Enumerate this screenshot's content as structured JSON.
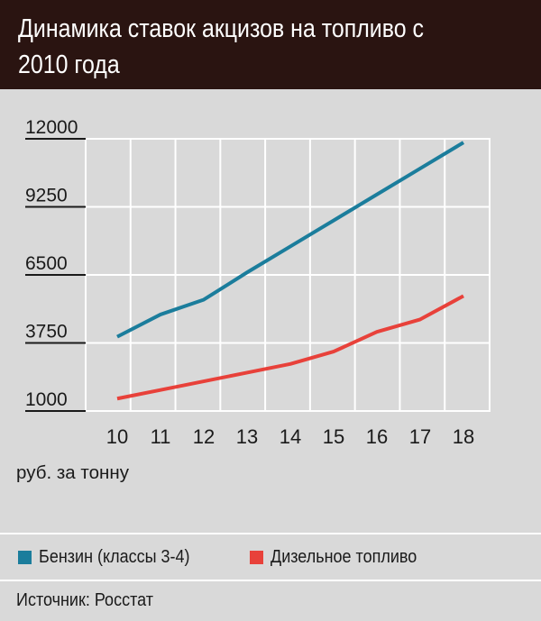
{
  "title": "Динамика ставок акцизов на топливо с 2010 года",
  "source": "Источник: Росстат",
  "colors": {
    "header_bg": "#2a1411",
    "benzin": "#1b7d9c",
    "diesel": "#e8413a",
    "grid": "#ffffff",
    "background": "#d9d9d9"
  },
  "chart_data": {
    "type": "line",
    "title": "Динамика ставок акцизов на топливо с 2010 года",
    "xlabel": "",
    "ylabel": "",
    "unit_label": "руб. за тонну",
    "categories": [
      "10",
      "11",
      "12",
      "13",
      "14",
      "15",
      "16",
      "17",
      "18"
    ],
    "yticks": [
      "12000",
      "9250",
      "6500",
      "3750",
      "1000"
    ],
    "ylim": [
      1000,
      12000
    ],
    "grid": true,
    "legend_position": "bottom",
    "series": [
      {
        "name": "Бензин (классы 3-4)",
        "color": "#1b7d9c",
        "values": [
          4000,
          4900,
          5500,
          6600,
          7650,
          8700,
          9750,
          10800,
          11850
        ]
      },
      {
        "name": "Дизельное топливо",
        "color": "#e8413a",
        "values": [
          1500,
          1850,
          2200,
          2550,
          2900,
          3400,
          4200,
          4700,
          5650
        ]
      }
    ]
  }
}
